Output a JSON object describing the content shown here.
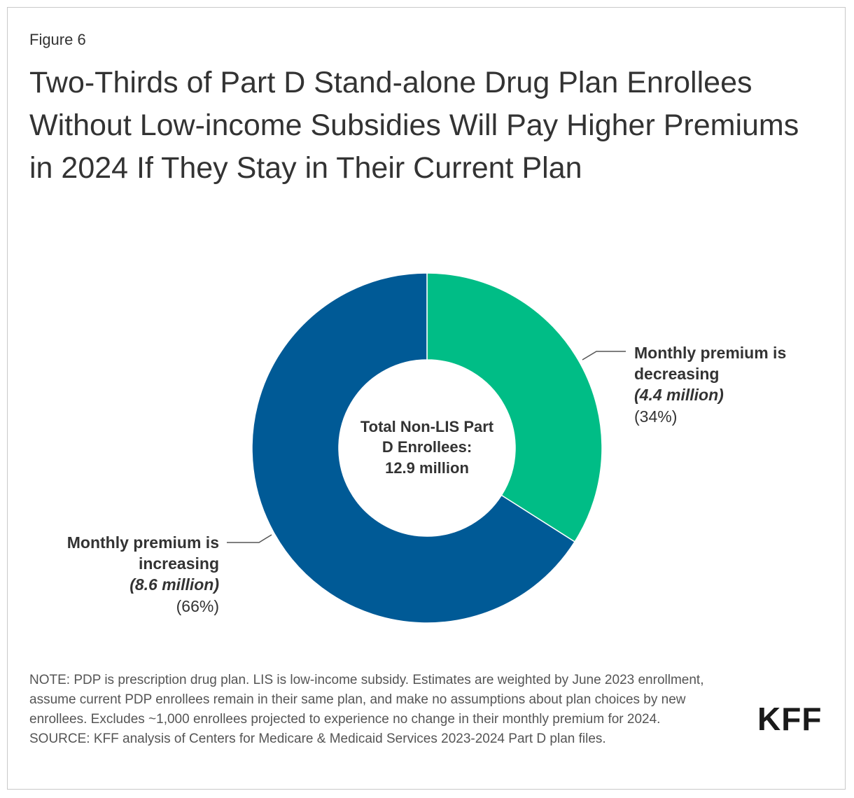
{
  "figure_label": "Figure 6",
  "title": "Two-Thirds of Part D Stand-alone Drug Plan Enrollees Without Low-income Subsidies Will Pay Higher Premiums in 2024 If They Stay in Their Current Plan",
  "colors": {
    "decreasing": "#00bd86",
    "increasing": "#005a96",
    "text": "#333333",
    "leader": "#555555"
  },
  "chart_data": {
    "type": "pie",
    "subtype": "donut",
    "center_label": [
      "Total Non-LIS Part",
      "D Enrollees:",
      "12.9 million"
    ],
    "slices": [
      {
        "key": "decreasing",
        "label_lines": [
          "Monthly premium is",
          "decreasing"
        ],
        "value_millions": 4.4,
        "value_label": "(4.4 million)",
        "percent": 34,
        "percent_label": "(34%)"
      },
      {
        "key": "increasing",
        "label_lines": [
          "Monthly premium is",
          "increasing"
        ],
        "value_millions": 8.6,
        "value_label": "(8.6 million)",
        "percent": 66,
        "percent_label": "(66%)"
      }
    ]
  },
  "note": "NOTE: PDP is prescription drug plan. LIS is low-income subsidy. Estimates are weighted by June 2023 enrollment, assume current PDP enrollees remain in their same plan, and make no assumptions about plan choices by new enrollees. Excludes ~1,000 enrollees projected to experience no change in their monthly premium for 2024.",
  "source": "SOURCE: KFF analysis of Centers for Medicare & Medicaid Services 2023-2024 Part D plan files.",
  "logo_text": "KFF"
}
